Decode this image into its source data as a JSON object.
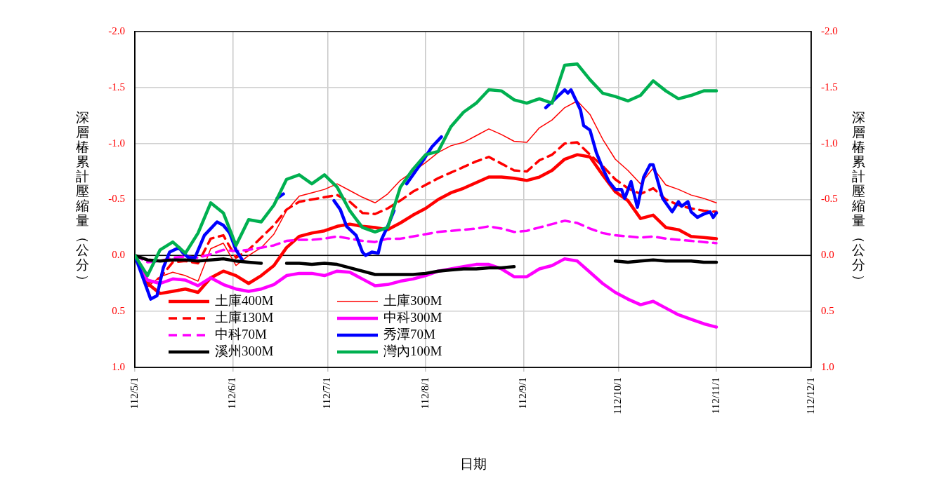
{
  "chart_data": {
    "type": "line",
    "xlabel": "日期",
    "ylabel": "深層椿累計壓縮量（公分）",
    "y2label": "深層椿累計壓縮量（公分）",
    "x": [
      "--05-01",
      "--05-05",
      "--05-09",
      "--05-13",
      "--05-17",
      "--05-21",
      "--05-25",
      "--05-29",
      "--06-02",
      "--06-06",
      "--06-10",
      "--06-14",
      "--06-18",
      "--06-22",
      "--06-26",
      "--06-30",
      "--07-04",
      "--07-08",
      "--07-12",
      "--07-16",
      "--07-20",
      "--07-24",
      "--07-28",
      "--08-01",
      "--08-05",
      "--08-09",
      "--08-13",
      "--08-17",
      "--08-21",
      "--08-25",
      "--08-29",
      "--09-02",
      "--09-06",
      "--09-10",
      "--09-14",
      "--09-18",
      "--09-22",
      "--09-26",
      "--09-30",
      "--10-04",
      "--10-08",
      "--10-12",
      "--10-16",
      "--10-20",
      "--10-24",
      "--10-28",
      "--11-01"
    ],
    "series": [
      {
        "name": "土庫400M",
        "color": "#ff0000",
        "values": [
          0,
          0.25,
          0.34,
          0.32,
          0.3,
          0.33,
          0.2,
          0.14,
          0.18,
          0.25,
          0.18,
          0.09,
          -0.07,
          -0.17,
          -0.2,
          -0.22,
          -0.26,
          -0.28,
          -0.26,
          -0.25,
          -0.23,
          -0.29,
          -0.36,
          -0.42,
          -0.5,
          -0.56,
          -0.6,
          -0.65,
          -0.7,
          -0.7,
          -0.69,
          -0.67,
          -0.7,
          -0.76,
          -0.86,
          -0.9,
          -0.88,
          -0.72,
          -0.57,
          -0.49,
          -0.33,
          -0.36,
          -0.25,
          -0.23,
          -0.17,
          -0.16,
          -0.15
        ]
      },
      {
        "name": "土庫300M",
        "color": "#ff0000",
        "values": [
          0,
          0.28,
          0.19,
          0.15,
          0.18,
          0.23,
          -0.06,
          -0.11,
          0.09,
          0,
          -0.07,
          -0.19,
          -0.4,
          -0.53,
          -0.56,
          -0.59,
          -0.64,
          -0.58,
          -0.52,
          -0.47,
          -0.55,
          -0.67,
          -0.75,
          -0.83,
          -0.92,
          -0.98,
          -1.01,
          -1.07,
          -1.13,
          -1.08,
          -1.02,
          -1.01,
          -1.14,
          -1.21,
          -1.32,
          -1.38,
          -1.26,
          -1.04,
          -0.86,
          -0.76,
          -0.64,
          -0.78,
          -0.63,
          -0.59,
          -0.54,
          -0.51,
          -0.47
        ]
      },
      {
        "name": "土庫130M",
        "color": "#ff0000",
        "line_style": "dashed",
        "values": [
          0,
          0.25,
          0.2,
          0.06,
          0.05,
          0.07,
          -0.15,
          -0.18,
          0.02,
          -0.05,
          -0.16,
          -0.27,
          -0.41,
          -0.48,
          -0.5,
          -0.52,
          -0.54,
          -0.48,
          -0.38,
          -0.37,
          -0.42,
          -0.49,
          -0.57,
          -0.63,
          -0.69,
          -0.74,
          -0.79,
          -0.84,
          -0.88,
          -0.82,
          -0.76,
          -0.75,
          -0.85,
          -0.9,
          -1,
          -1.01,
          -0.9,
          -0.8,
          -0.68,
          -0.6,
          -0.55,
          -0.6,
          -0.5,
          -0.45,
          -0.42,
          -0.4,
          -0.39
        ]
      },
      {
        "name": "中科300M",
        "color": "#ff00ff",
        "values": [
          0,
          0.22,
          0.25,
          0.21,
          0.22,
          0.27,
          0.2,
          0.26,
          0.3,
          0.32,
          0.3,
          0.26,
          0.18,
          0.16,
          0.16,
          0.18,
          0.14,
          0.15,
          0.21,
          0.27,
          0.26,
          0.23,
          0.21,
          0.18,
          0.14,
          0.12,
          0.1,
          0.08,
          0.08,
          0.12,
          0.19,
          0.19,
          0.12,
          0.09,
          0.03,
          0.05,
          0.15,
          0.25,
          0.33,
          0.39,
          0.44,
          0.41,
          0.47,
          0.53,
          0.57,
          0.61,
          0.64
        ]
      },
      {
        "name": "中科70M",
        "color": "#ff00ff",
        "line_style": "dashed",
        "values": [
          0,
          0.06,
          0.05,
          0.02,
          0.01,
          0.02,
          -0.01,
          -0.05,
          -0.04,
          -0.05,
          -0.07,
          -0.09,
          -0.13,
          -0.14,
          -0.14,
          -0.15,
          -0.17,
          -0.15,
          -0.13,
          -0.12,
          -0.15,
          -0.15,
          -0.17,
          -0.19,
          -0.21,
          -0.22,
          -0.23,
          -0.24,
          -0.26,
          -0.24,
          -0.21,
          -0.22,
          -0.25,
          -0.28,
          -0.31,
          -0.29,
          -0.24,
          -0.2,
          -0.18,
          -0.17,
          -0.16,
          -0.17,
          -0.15,
          -0.14,
          -0.13,
          -0.12,
          -0.11
        ]
      },
      {
        "name": "秀潭70M",
        "color": "#0000ff",
        "x": [
          "--05-01",
          "--05-06",
          "--05-08",
          "--05-10",
          "--05-12",
          "--05-15",
          "--05-16",
          "--05-18",
          "--05-20",
          "--05-23",
          "--05-27",
          "--05-29",
          "--05-31",
          "--06-02",
          "--06-04",
          "--06-05",
          "--06-15",
          "--06-17",
          "--06-18",
          "--07-03",
          "--07-05",
          "--07-07",
          "--07-10",
          "--07-12",
          "--07-13",
          "--07-15",
          "--07-17",
          "--07-18",
          "--07-20",
          "--07-22",
          "--07-23",
          "--07-26",
          "--07-31",
          "--08-03",
          "--08-06",
          "--08-07",
          "--09-08",
          "--09-14",
          "--09-15",
          "--09-16",
          "--09-19",
          "--09-20",
          "--09-22",
          "--09-24",
          "--09-26",
          "--09-28",
          "--09-30",
          "--10-02",
          "--10-03",
          "--10-05",
          "--10-07",
          "--10-09",
          "--10-11",
          "--10-12",
          "--10-15",
          "--10-18",
          "--10-20",
          "--10-21",
          "--10-23",
          "--10-24",
          "--10-26",
          "--10-28",
          "--10-30",
          "--10-31",
          "--11-01"
        ],
        "values": [
          0,
          0.39,
          0.36,
          0.11,
          -0.03,
          -0.07,
          -0.03,
          0.02,
          0.02,
          -0.18,
          -0.3,
          -0.27,
          -0.2,
          -0.05,
          0.04,
          null,
          -0.51,
          -0.55,
          null,
          -0.49,
          -0.41,
          -0.26,
          -0.18,
          -0.03,
          0,
          -0.03,
          -0.02,
          -0.14,
          -0.26,
          -0.4,
          null,
          -0.64,
          -0.84,
          -0.97,
          -1.06,
          null,
          -1.32,
          -1.48,
          -1.45,
          -1.48,
          -1.3,
          -1.16,
          -1.12,
          -0.92,
          -0.78,
          -0.66,
          -0.59,
          -0.59,
          -0.51,
          -0.66,
          -0.43,
          -0.7,
          -0.81,
          -0.81,
          -0.51,
          -0.39,
          -0.48,
          -0.44,
          -0.48,
          -0.39,
          -0.34,
          -0.37,
          -0.39,
          -0.34,
          -0.38
        ]
      },
      {
        "name": "溪州300M",
        "color": "#000000",
        "values": [
          0,
          0.04,
          0.05,
          0.04,
          0.04,
          0.05,
          0.04,
          0.03,
          0.05,
          0.06,
          0.07,
          null,
          0.07,
          0.07,
          0.08,
          0.07,
          0.08,
          0.11,
          0.14,
          0.17,
          0.17,
          0.17,
          0.17,
          0.16,
          0.14,
          0.13,
          0.12,
          0.12,
          0.11,
          0.11,
          0.1,
          null,
          null,
          null,
          null,
          null,
          null,
          null,
          0.05,
          0.06,
          0.05,
          0.04,
          0.05,
          0.05,
          0.05,
          0.06,
          0.06
        ]
      },
      {
        "name": "灣內100M",
        "color": "#00b050",
        "values": [
          0,
          0.18,
          -0.05,
          -0.12,
          -0.02,
          -0.2,
          -0.47,
          -0.38,
          -0.09,
          -0.32,
          -0.3,
          -0.45,
          -0.68,
          -0.72,
          -0.64,
          -0.72,
          -0.61,
          -0.4,
          -0.25,
          -0.21,
          -0.25,
          -0.61,
          -0.77,
          -0.9,
          -0.93,
          -1.15,
          -1.28,
          -1.36,
          -1.48,
          -1.47,
          -1.39,
          -1.36,
          -1.4,
          -1.36,
          -1.7,
          -1.71,
          -1.57,
          -1.45,
          -1.42,
          -1.38,
          -1.43,
          -1.56,
          -1.47,
          -1.4,
          -1.43,
          -1.47,
          -1.47
        ]
      }
    ],
    "xlim": [
      "--05-01",
      "--12-01"
    ],
    "xticks": [
      {
        "value": "--05-01",
        "label": "112/5/1"
      },
      {
        "value": "--06-01",
        "label": "112/6/1"
      },
      {
        "value": "--07-01",
        "label": "112/7/1"
      },
      {
        "value": "--08-01",
        "label": "112/8/1"
      },
      {
        "value": "--09-01",
        "label": "112/9/1"
      },
      {
        "value": "--10-01",
        "label": "112/10/1"
      },
      {
        "value": "--11-01",
        "label": "112/11/1"
      },
      {
        "value": "--12-01",
        "label": "112/12/1"
      }
    ],
    "ylim": [
      1,
      -2
    ],
    "yticks": [
      {
        "value": -2,
        "label": "-2.0"
      },
      -1.5,
      {
        "value": -1,
        "label": "-1.0"
      },
      -0.5,
      {
        "value": 0,
        "label": "0.0"
      },
      0.5,
      {
        "value": 1,
        "label": "1.0"
      }
    ],
    "y2lim": [
      1,
      -2
    ],
    "y2ticks": [
      {
        "value": -2,
        "label": "-2.0"
      },
      -1.5,
      {
        "value": -1,
        "label": "-1.0"
      },
      -0.5,
      {
        "value": 0,
        "label": "0.0"
      },
      0.5,
      {
        "value": 1,
        "label": "1.0"
      }
    ],
    "ref_lines": [
      {
        "axis": "y",
        "value": 0,
        "color": "#000000"
      }
    ],
    "grid": true,
    "legend": "bottom left",
    "marker": "none",
    "line_style": "solid"
  }
}
